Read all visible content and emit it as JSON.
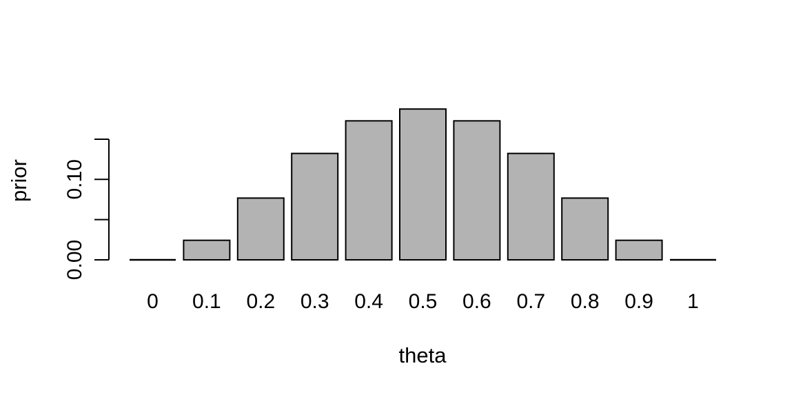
{
  "page": {
    "background": "#ffffff"
  },
  "chart_data": {
    "type": "bar",
    "title": "",
    "xlabel": "theta",
    "ylabel": "prior",
    "categories": [
      "0",
      "0.1",
      "0.2",
      "0.3",
      "0.4",
      "0.5",
      "0.6",
      "0.7",
      "0.8",
      "0.9",
      "1"
    ],
    "values": [
      0,
      0.0243,
      0.0768,
      0.1323,
      0.1728,
      0.1875,
      0.1728,
      0.1323,
      0.0768,
      0.0243,
      0
    ],
    "ylim": [
      0,
      0.19
    ],
    "y_axis_line_range": [
      0,
      0.15
    ],
    "y_ticks": [
      0,
      0.05,
      0.1,
      0.15
    ],
    "y_tick_labels": [
      "0.00",
      "",
      "0.10",
      ""
    ],
    "grid": false,
    "legend": "none",
    "colors": {
      "bar_fill": "#b3b3b3",
      "bar_stroke": "#000000",
      "axis": "#000000",
      "text": "#000000",
      "background": "#ffffff"
    }
  }
}
